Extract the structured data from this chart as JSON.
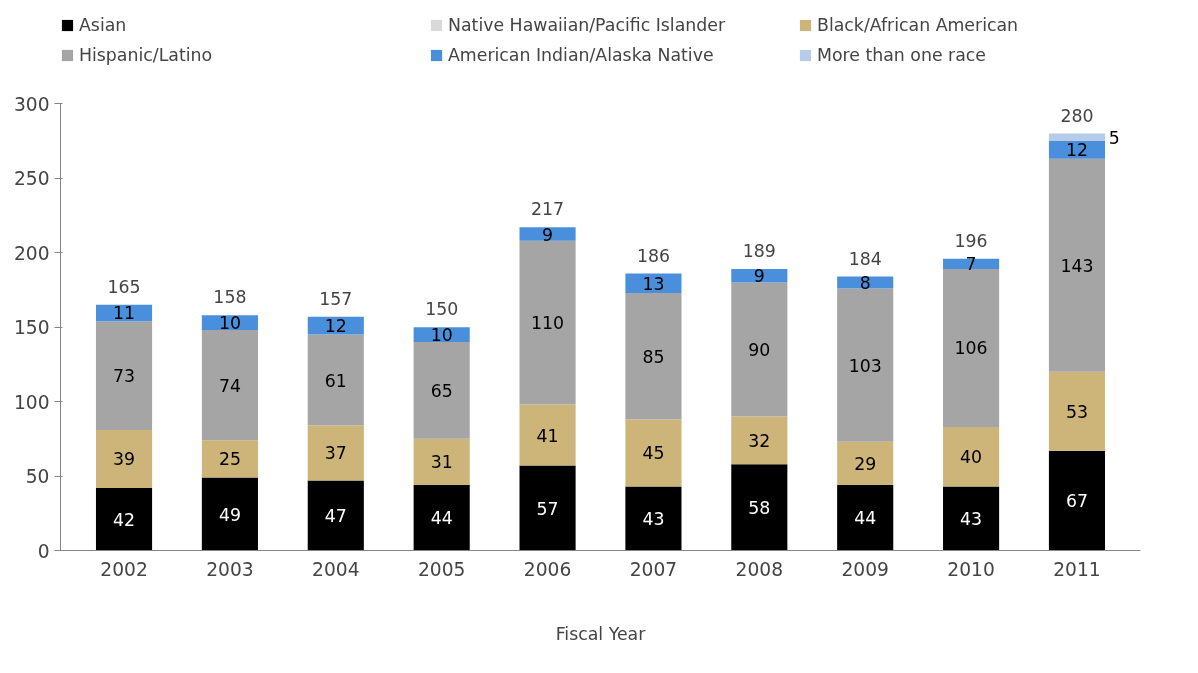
{
  "chart_data": {
    "type": "bar",
    "stacked": true,
    "xlabel": "Fiscal Year",
    "categories": [
      "2002",
      "2003",
      "2004",
      "2005",
      "2006",
      "2007",
      "2008",
      "2009",
      "2010",
      "2011"
    ],
    "series": [
      {
        "name": "Asian",
        "color": "#000000",
        "values": [
          42,
          49,
          47,
          44,
          57,
          43,
          58,
          44,
          43,
          67
        ],
        "value_labels": [
          "42",
          "49",
          "47",
          "44",
          "57",
          "43",
          "58",
          "44",
          "43",
          "67"
        ]
      },
      {
        "name": "Native Hawaiian/Pacific Islander",
        "color": "#d9d9d9",
        "values": [
          0,
          0,
          0,
          0,
          0,
          0,
          0,
          0,
          0,
          0
        ],
        "value_labels": [
          null,
          null,
          null,
          null,
          null,
          null,
          null,
          null,
          null,
          null
        ]
      },
      {
        "name": "Black/African American",
        "color": "#cdb57a",
        "values": [
          39,
          25,
          37,
          31,
          41,
          45,
          32,
          29,
          40,
          53
        ],
        "value_labels": [
          "39",
          "25",
          "37",
          "31",
          "41",
          "45",
          "32",
          "29",
          "40",
          "53"
        ]
      },
      {
        "name": "Hispanic/Latino",
        "color": "#a5a5a5",
        "values": [
          73,
          74,
          61,
          65,
          110,
          85,
          90,
          103,
          106,
          143
        ],
        "value_labels": [
          "73",
          "74",
          "61",
          "65",
          "110",
          "85",
          "90",
          "103",
          "106",
          "143"
        ]
      },
      {
        "name": "American Indian/Alaska Native",
        "color": "#4a8fdb",
        "values": [
          11,
          10,
          12,
          10,
          9,
          13,
          9,
          8,
          7,
          12
        ],
        "value_labels": [
          "11",
          "10",
          "12",
          "10",
          "9",
          "13",
          "9",
          "8",
          "7",
          "12"
        ]
      },
      {
        "name": "More than one race",
        "color": "#b6cbe8",
        "values": [
          0,
          0,
          0,
          0,
          0,
          0,
          0,
          0,
          0,
          5
        ],
        "value_labels": [
          null,
          null,
          null,
          null,
          null,
          null,
          null,
          null,
          null,
          "5"
        ]
      }
    ],
    "totals": [
      "165",
      "158",
      "157",
      "150",
      "217",
      "186",
      "189",
      "184",
      "196",
      "280"
    ],
    "ylim": [
      0,
      300
    ],
    "yticks": [
      0,
      50,
      100,
      150,
      200,
      250,
      300
    ],
    "grid": false,
    "legend": "top"
  }
}
